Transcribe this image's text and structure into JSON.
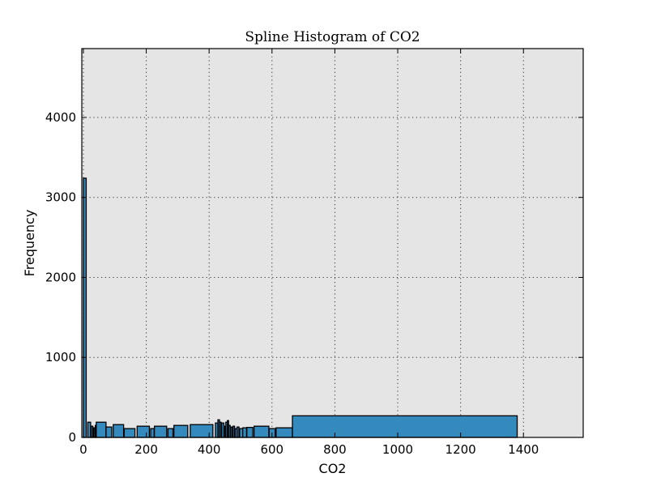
{
  "chart_data": {
    "type": "bar",
    "title": "Spline Histogram of CO2",
    "xlabel": "CO2",
    "ylabel": "Frequency",
    "xlim": [
      -5,
      1590
    ],
    "ylim": [
      0,
      4860
    ],
    "xticks": [
      0,
      200,
      400,
      600,
      800,
      1000,
      1200,
      1400
    ],
    "yticks": [
      0,
      1000,
      2000,
      3000,
      4000
    ],
    "grid": true,
    "colors": {
      "bar": "#348abd",
      "background": "#e5e5e5"
    },
    "bins": [
      {
        "x0": 0,
        "x1": 9,
        "y": 3240
      },
      {
        "x0": 14,
        "x1": 23,
        "y": 190
      },
      {
        "x0": 25,
        "x1": 30,
        "y": 140
      },
      {
        "x0": 32,
        "x1": 36,
        "y": 120
      },
      {
        "x0": 38,
        "x1": 41,
        "y": 150
      },
      {
        "x0": 41,
        "x1": 72,
        "y": 190
      },
      {
        "x0": 72,
        "x1": 90,
        "y": 130
      },
      {
        "x0": 95,
        "x1": 128,
        "y": 160
      },
      {
        "x0": 130,
        "x1": 164,
        "y": 110
      },
      {
        "x0": 171,
        "x1": 210,
        "y": 140
      },
      {
        "x0": 214,
        "x1": 225,
        "y": 110
      },
      {
        "x0": 226,
        "x1": 265,
        "y": 140
      },
      {
        "x0": 269,
        "x1": 285,
        "y": 110
      },
      {
        "x0": 288,
        "x1": 332,
        "y": 150
      },
      {
        "x0": 340,
        "x1": 412,
        "y": 160
      },
      {
        "x0": 420,
        "x1": 428,
        "y": 180
      },
      {
        "x0": 428,
        "x1": 433,
        "y": 220
      },
      {
        "x0": 433,
        "x1": 438,
        "y": 190
      },
      {
        "x0": 440,
        "x1": 447,
        "y": 180
      },
      {
        "x0": 449,
        "x1": 453,
        "y": 140
      },
      {
        "x0": 453,
        "x1": 458,
        "y": 190
      },
      {
        "x0": 458,
        "x1": 462,
        "y": 210
      },
      {
        "x0": 462,
        "x1": 467,
        "y": 150
      },
      {
        "x0": 469,
        "x1": 474,
        "y": 130
      },
      {
        "x0": 476,
        "x1": 481,
        "y": 140
      },
      {
        "x0": 483,
        "x1": 489,
        "y": 110
      },
      {
        "x0": 489,
        "x1": 495,
        "y": 130
      },
      {
        "x0": 497,
        "x1": 507,
        "y": 110
      },
      {
        "x0": 507,
        "x1": 519,
        "y": 120
      },
      {
        "x0": 520,
        "x1": 539,
        "y": 125
      },
      {
        "x0": 543,
        "x1": 590,
        "y": 140
      },
      {
        "x0": 591,
        "x1": 610,
        "y": 110
      },
      {
        "x0": 613,
        "x1": 665,
        "y": 120
      },
      {
        "x0": 665,
        "x1": 1380,
        "y": 270
      }
    ]
  }
}
